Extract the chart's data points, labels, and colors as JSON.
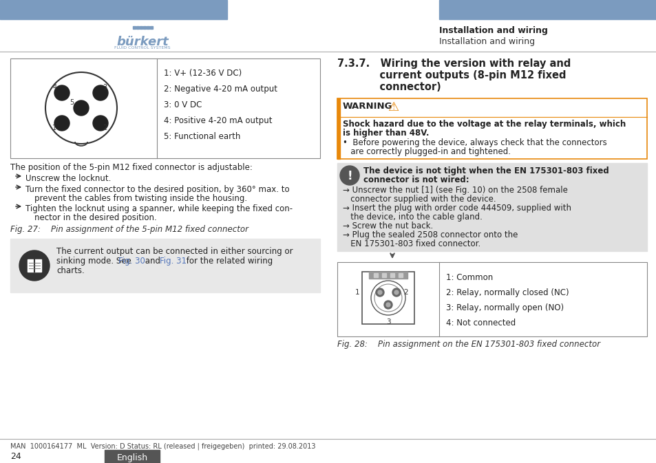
{
  "page_bg": "#ffffff",
  "header_bar_color": "#7b9bbf",
  "header_title_bold": "Installation and wiring",
  "header_title_sub": "Installation and wiring",
  "left_box_pin_labels": [
    "1: V+ (12-36 V DC)",
    "2: Negative 4-20 mA output",
    "3: 0 V DC",
    "4: Positive 4-20 mA output",
    "5: Functional earth"
  ],
  "left_box_text_0": "The position of the 5-pin M12 fixed connector is adjustable:",
  "left_box_text_1": "Unscrew the locknut.",
  "left_box_text_2a": "Turn the fixed connector to the desired position, by 360° max. to",
  "left_box_text_2b": "prevent the cables from twisting inside the housing.",
  "left_box_text_3a": "Tighten the locknut using a spanner, while keeping the fixed con-",
  "left_box_text_3b": "nector in the desired position.",
  "fig27_caption": "Fig. 27:    Pin assignment of the 5-pin M12 fixed connector",
  "note_box_line1": "The current output can be connected in either sourcing or",
  "note_box_line2a": "sinking mode. See ",
  "note_box_link1": "Fig. 30",
  "note_box_line2b": " and ",
  "note_box_link2": "Fig. 31",
  "note_box_line2c": " for the related wiring",
  "note_box_line3": "charts.",
  "section_title_lines": [
    "7.3.7.   Wiring the version with relay and",
    "            current outputs (8-pin M12 fixed",
    "            connector)"
  ],
  "warning_title": "WARNING",
  "warning_bold1": "Shock hazard due to the voltage at the relay terminals, which",
  "warning_bold2": "is higher than 48V.",
  "warning_bullet1": "•  Before powering the device, always check that the connectors",
  "warning_bullet2": "   are correctly plugged-in and tightened.",
  "note_bold1": "The device is not tight when the EN 175301-803 fixed",
  "note_bold2": "connector is not wired:",
  "note_items": [
    [
      "→ Unscrew the nut [1] (see Fig. 10) on the 2508 female",
      "   connector supplied with the device."
    ],
    [
      "→ Insert the plug with order code 444509, supplied with",
      "   the device, into the cable gland."
    ],
    [
      "→ Screw the nut back."
    ],
    [
      "→ Plug the sealed 2508 connector onto the",
      "   EN 175301-803 fixed connector."
    ]
  ],
  "right_pin_labels": [
    "1: Common",
    "2: Relay, normally closed (NC)",
    "3: Relay, normally open (NO)",
    "4: Not connected"
  ],
  "fig28_caption": "Fig. 28:    Pin assignment on the EN 175301-803 fixed connector",
  "footer_text": "MAN  1000164177  ML  Version: D Status: RL (released | freigegeben)  printed: 29.08.2013",
  "footer_page": "24",
  "footer_lang_bg": "#555555",
  "footer_lang_text": "English",
  "warning_orange": "#e8880a",
  "note_bg": "#e0e0e0",
  "link_color": "#5577bb"
}
